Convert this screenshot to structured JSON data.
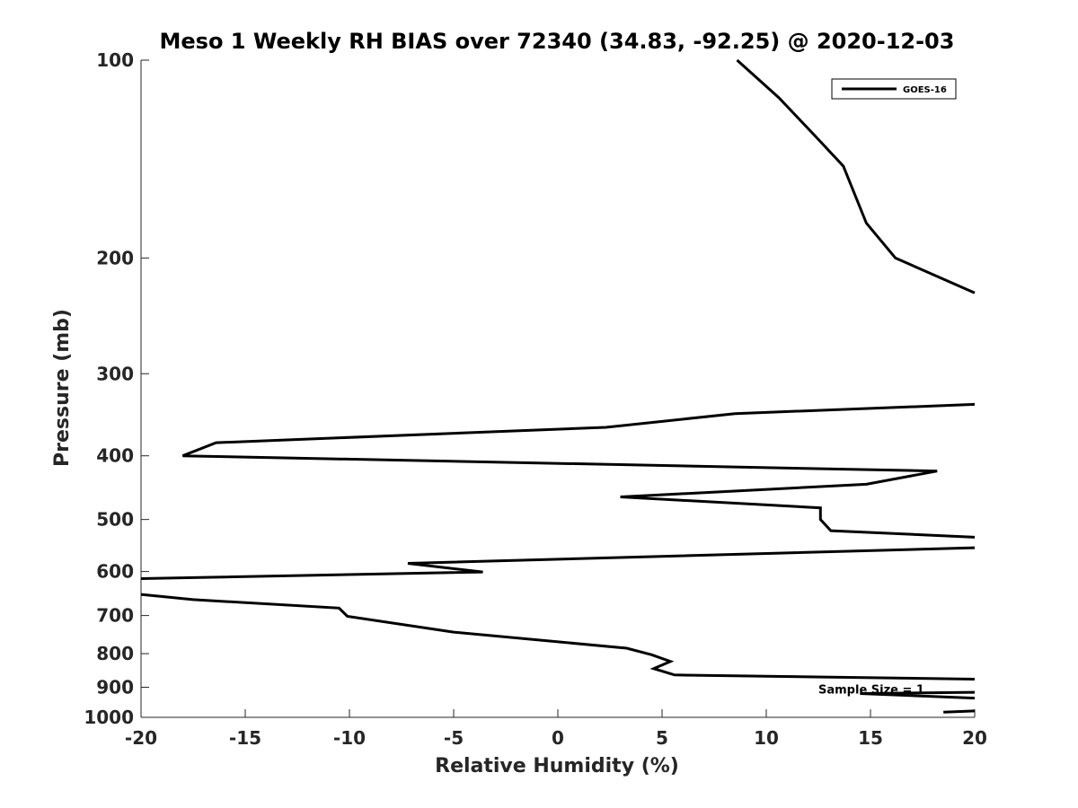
{
  "chart_data": {
    "type": "line",
    "title": "Meso 1 Weekly RH BIAS over 72340 (34.83, -92.25) @ 2020-12-03",
    "xlabel": "Relative Humidity (%)",
    "ylabel": "Pressure (mb)",
    "xlim": [
      -20,
      20
    ],
    "ylim": [
      100,
      1000
    ],
    "y_scale": "log",
    "y_direction": "reversed",
    "grid": false,
    "legend_position": "top-right",
    "x_ticks": [
      -20,
      -15,
      -10,
      -5,
      0,
      5,
      10,
      15,
      20
    ],
    "x_tick_labels": [
      "-20",
      "-15",
      "-10",
      "-5",
      "0",
      "5",
      "10",
      "15",
      "20"
    ],
    "y_ticks": [
      100,
      200,
      300,
      400,
      500,
      600,
      700,
      800,
      900,
      1000
    ],
    "y_tick_labels": [
      "100",
      "200",
      "300",
      "400",
      "500",
      "600",
      "700",
      "800",
      "900",
      "1000"
    ],
    "series": [
      {
        "name": "GOES-16",
        "color": "#000000",
        "segments": [
          [
            [
              8.6,
              100
            ],
            [
              10.6,
              114
            ],
            [
              12.3,
              130
            ],
            [
              13.7,
              145
            ],
            [
              14.8,
              177
            ],
            [
              16.2,
              200
            ],
            [
              20,
              226
            ]
          ],
          [
            [
              20,
              334
            ],
            [
              8.5,
              345
            ],
            [
              2.3,
              362
            ],
            [
              -16.4,
              382
            ],
            [
              -18,
              400
            ],
            [
              18.2,
              422
            ],
            [
              14.8,
              442
            ],
            [
              3.0,
              462
            ],
            [
              12.6,
              480
            ],
            [
              12.6,
              500
            ],
            [
              13.1,
              520
            ],
            [
              20,
              532
            ]
          ],
          [
            [
              20,
              552
            ],
            [
              -7.2,
              583
            ],
            [
              -3.6,
              601
            ],
            [
              -20,
              615
            ]
          ],
          [
            [
              -20,
              650
            ],
            [
              -17.5,
              662
            ],
            [
              -10.5,
              682
            ],
            [
              -10.1,
              702
            ],
            [
              -5,
              742
            ],
            [
              3.3,
              785
            ],
            [
              4.5,
              803
            ],
            [
              5.4,
              822
            ],
            [
              4.6,
              843
            ],
            [
              5.6,
              862
            ],
            [
              20,
              875
            ]
          ],
          [
            [
              14.5,
              920
            ],
            [
              20,
              916
            ]
          ],
          [
            [
              14.5,
              920
            ],
            [
              20,
              935
            ]
          ],
          [
            [
              18.5,
              982
            ],
            [
              20,
              978
            ]
          ]
        ]
      }
    ],
    "annotations": [
      {
        "text": "Sample Size = 1",
        "x": 15,
        "y": 905
      }
    ]
  }
}
